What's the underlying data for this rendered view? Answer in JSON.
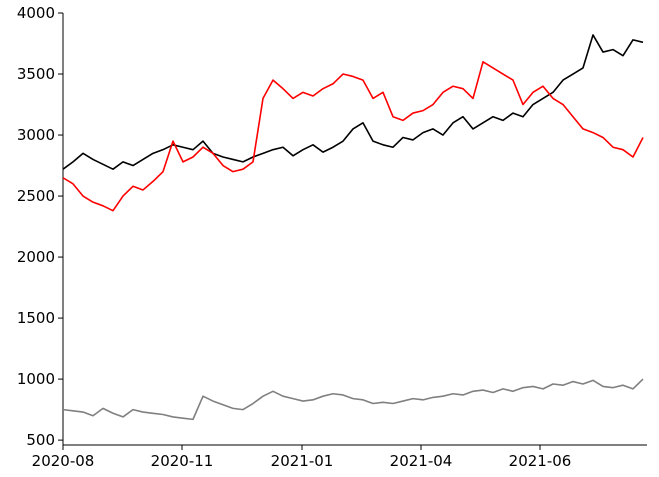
{
  "chart_data": {
    "type": "line",
    "series": [
      {
        "name": "black",
        "color": "#000000",
        "values": [
          2720,
          2780,
          2850,
          2800,
          2760,
          2720,
          2780,
          2750,
          2800,
          2850,
          2880,
          2920,
          2900,
          2880,
          2950,
          2850,
          2820,
          2800,
          2780,
          2820,
          2850,
          2880,
          2900,
          2830,
          2880,
          2920,
          2860,
          2900,
          2950,
          3050,
          3100,
          2950,
          2920,
          2900,
          2980,
          2960,
          3020,
          3050,
          3000,
          3100,
          3150,
          3050,
          3100,
          3150,
          3120,
          3180,
          3150,
          3250,
          3300,
          3350,
          3450,
          3500,
          3550,
          3820,
          3680,
          3700,
          3650,
          3780,
          3760
        ]
      },
      {
        "name": "red",
        "color": "#ff0000",
        "values": [
          2650,
          2600,
          2500,
          2450,
          2420,
          2380,
          2500,
          2580,
          2550,
          2620,
          2700,
          2950,
          2780,
          2820,
          2900,
          2850,
          2750,
          2700,
          2720,
          2780,
          3300,
          3450,
          3380,
          3300,
          3350,
          3320,
          3380,
          3420,
          3500,
          3480,
          3450,
          3300,
          3350,
          3150,
          3120,
          3180,
          3200,
          3250,
          3350,
          3400,
          3380,
          3300,
          3600,
          3550,
          3500,
          3450,
          3250,
          3350,
          3400,
          3300,
          3250,
          3150,
          3050,
          3020,
          2980,
          2900,
          2880,
          2820,
          2980
        ]
      },
      {
        "name": "gray",
        "color": "#808080",
        "values": [
          750,
          740,
          730,
          700,
          760,
          720,
          690,
          750,
          730,
          720,
          710,
          690,
          680,
          670,
          860,
          820,
          790,
          760,
          750,
          800,
          860,
          900,
          860,
          840,
          820,
          830,
          860,
          880,
          870,
          840,
          830,
          800,
          810,
          800,
          820,
          840,
          830,
          850,
          860,
          880,
          870,
          900,
          910,
          890,
          920,
          900,
          930,
          940,
          920,
          960,
          950,
          980,
          960,
          990,
          940,
          930,
          950,
          920,
          1000
        ]
      }
    ],
    "xlim": [
      0,
      58.4
    ],
    "xticks": [
      {
        "value": 0,
        "label": "2020-08"
      },
      {
        "value": 11.9,
        "label": "2020-11"
      },
      {
        "value": 23.9,
        "label": "2021-01"
      },
      {
        "value": 35.8,
        "label": "2021-04"
      },
      {
        "value": 47.7,
        "label": "2021-06"
      }
    ],
    "ylim": [
      460,
      4000
    ],
    "yticks": [
      500,
      1000,
      1500,
      2000,
      2500,
      3000,
      3500,
      4000
    ],
    "grid": false
  }
}
